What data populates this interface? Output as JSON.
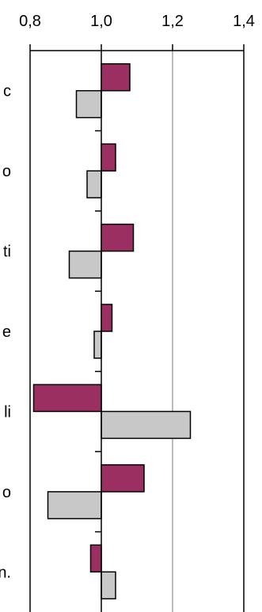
{
  "chart_data": {
    "type": "bar",
    "orientation": "horizontal",
    "title": "",
    "xlabel": "",
    "ylabel": "",
    "xlim": [
      0.8,
      1.4
    ],
    "x_ticks": [
      0.8,
      1.0,
      1.2,
      1.4
    ],
    "x_tick_labels": [
      "0,8",
      "1,0",
      "1,2",
      "1,4"
    ],
    "axis_position": "top",
    "baseline": 1.0,
    "grid": "vertical lines at 1,2 and 1,4",
    "legend": "none",
    "categories": [
      "c",
      "o",
      "ti",
      "e",
      "li",
      "o",
      "n."
    ],
    "series": [
      {
        "color": "#9b2f62",
        "values": [
          1.08,
          1.04,
          1.09,
          1.03,
          0.81,
          1.12,
          0.97
        ]
      },
      {
        "color": "#c8c8c8",
        "values": [
          0.93,
          0.96,
          0.91,
          0.98,
          1.25,
          0.85,
          1.04
        ]
      }
    ]
  }
}
